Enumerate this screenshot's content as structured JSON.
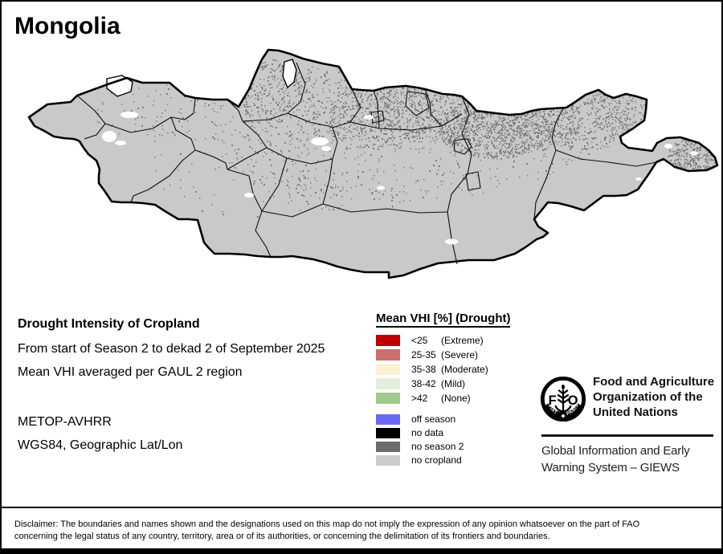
{
  "title": "Mongolia",
  "subtitle_block": {
    "heading": "Drought Intensity of Cropland",
    "period": "From start of Season 2 to dekad 2 of September 2025",
    "method": "Mean VHI averaged per GAUL 2 region",
    "sensor": "METOP-AVHRR",
    "projection": "WGS84, Geographic Lat/Lon"
  },
  "legend": {
    "title": "Mean VHI [%] (Drought)",
    "drought_classes": [
      {
        "range": "<25",
        "label": "(Extreme)",
        "color": "#c00000"
      },
      {
        "range": "25-35",
        "label": "(Severe)",
        "color": "#c9706a"
      },
      {
        "range": "35-38",
        "label": "(Moderate)",
        "color": "#fdf0d4"
      },
      {
        "range": "38-42",
        "label": "(Mild)",
        "color": "#e4eedc"
      },
      {
        "range": ">42",
        "label": "(None)",
        "color": "#a2c98c"
      }
    ],
    "status_classes": [
      {
        "label": "off season",
        "color": "#6a69f0"
      },
      {
        "label": "no data",
        "color": "#000000"
      },
      {
        "label": "no season 2",
        "color": "#6b6b6b"
      },
      {
        "label": "no cropland",
        "color": "#cccccc"
      }
    ]
  },
  "map": {
    "country": "Mongolia",
    "land_color": "#c9c9c9",
    "border_color": "#000000",
    "boundary_color": "#0d0d0d",
    "speckle_color": "#7d7d7d",
    "lake_color": "#ffffff"
  },
  "footer": {
    "fao_logo": {
      "left_letter": "F",
      "right_letter": "O",
      "motto_left": "FIAT",
      "motto_right": "PANIS"
    },
    "fao_name_lines": [
      "Food and Agriculture",
      "Organization of the",
      "United Nations"
    ],
    "giews_lines": [
      "Global Information and Early",
      "Warning System – GIEWS"
    ]
  },
  "disclaimer": {
    "line1": "Disclaimer: The boundaries and names shown and the designations used on this map do not imply the expression of any opinion whatsoever on the part of FAO",
    "line2": "concerning the legal status of any country, territory, area or of its authorities, or concerning the delimitation of its frontiers and boundaries."
  }
}
